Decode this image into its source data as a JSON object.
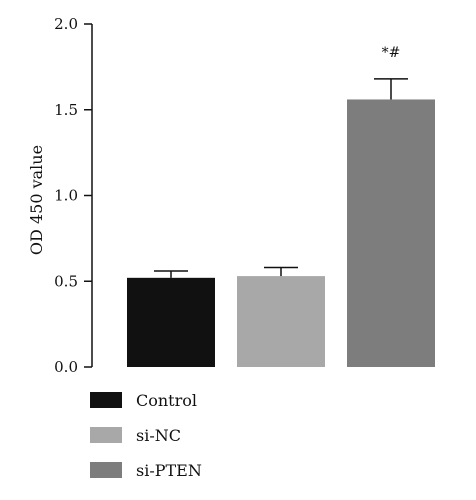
{
  "chart_data": {
    "type": "bar",
    "categories": [
      "Control",
      "si-NC",
      "si-PTEN"
    ],
    "values": [
      0.52,
      0.53,
      1.56
    ],
    "errors": [
      0.04,
      0.05,
      0.12
    ],
    "colors": [
      "#111111",
      "#a8a8a8",
      "#7d7d7d"
    ],
    "annotations": [
      "",
      "",
      "*#"
    ],
    "title": "",
    "xlabel": "",
    "ylabel": "OD 450 value",
    "ylim": [
      0,
      2.0
    ],
    "yticks": [
      "0.0",
      "0.5",
      "1.0",
      "1.5",
      "2.0"
    ],
    "legend_position": "bottom-left"
  }
}
